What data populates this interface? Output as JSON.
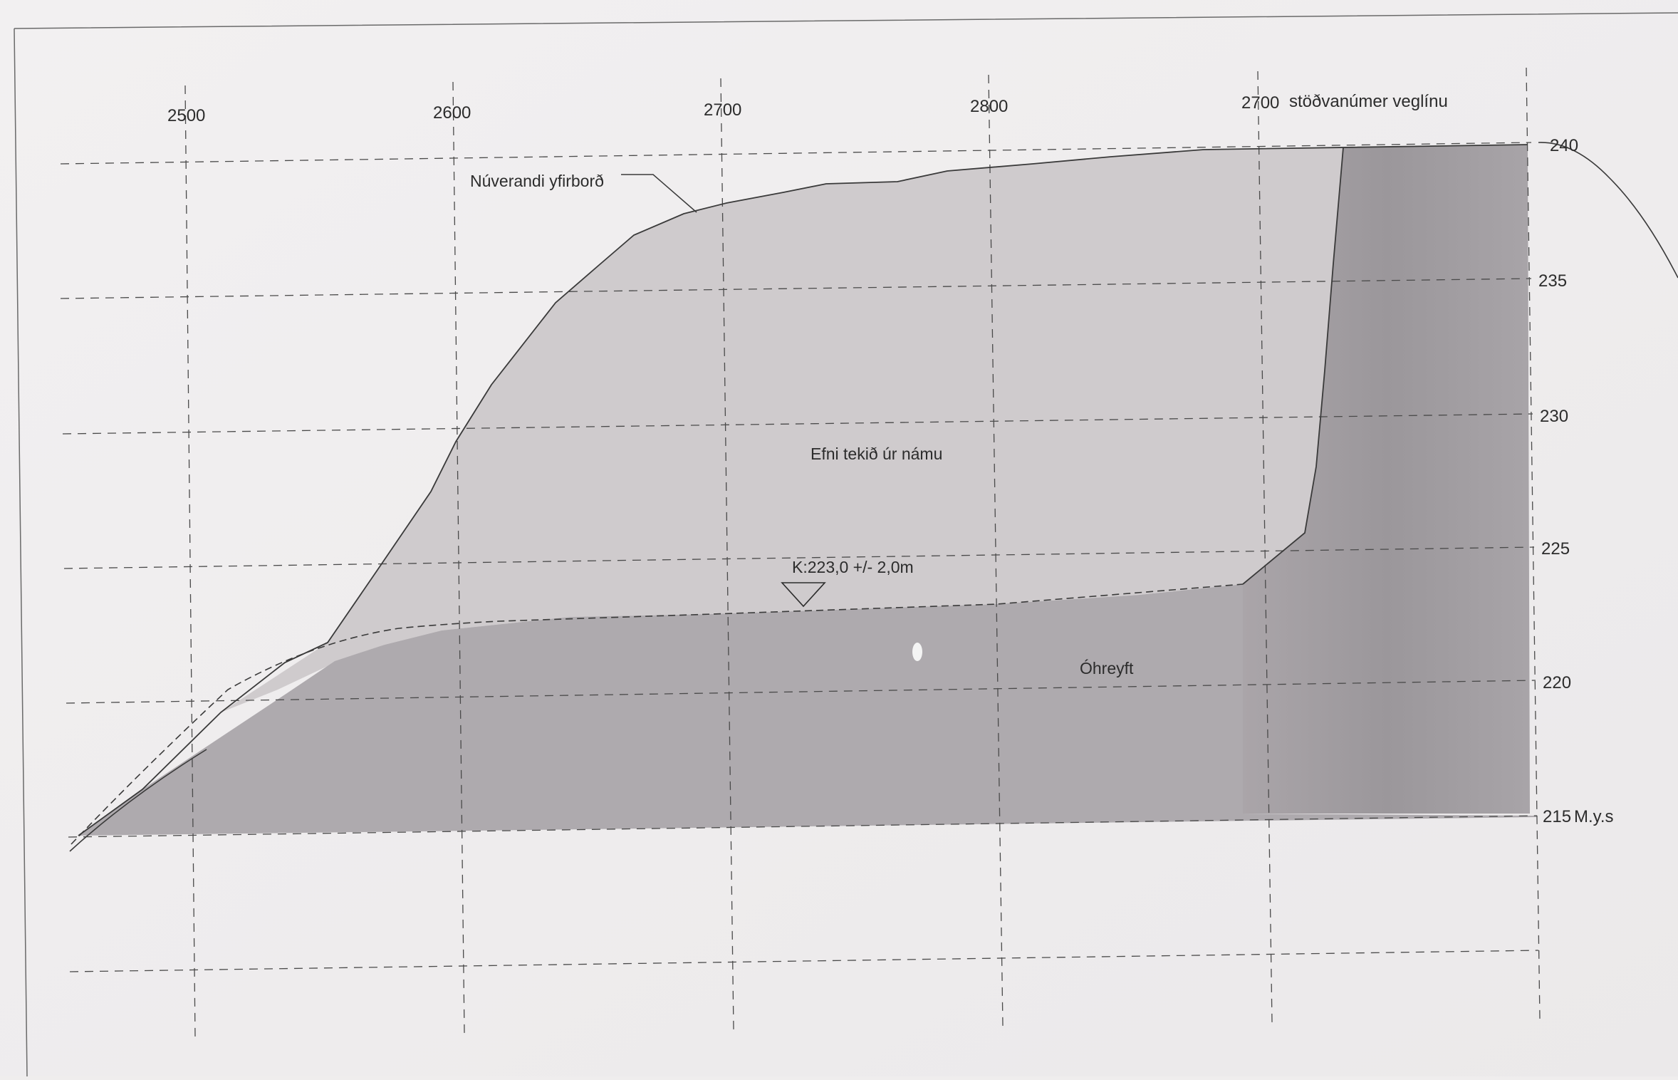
{
  "x_axis": {
    "tick_labels": [
      "2500",
      "2600",
      "2700",
      "2800",
      "2700"
    ],
    "end_label": "stöðvanúmer veglínu"
  },
  "y_axis": {
    "tick_labels": [
      "240",
      "235",
      "230",
      "225",
      "220",
      "215"
    ],
    "unit": "M.y.s"
  },
  "labels": {
    "existing_surface": "Núverandi yfirborð",
    "extracted_material": "Efni tekið úr námu",
    "level": "K:223,0 +/- 2,0m",
    "undisturbed": "Óhreyft"
  },
  "colors": {
    "paper": "#efeded",
    "excavation_fill": "#cdc9cb",
    "base_fill": "#aba7ab",
    "right_fill": "#9e9a9e",
    "line": "#3a3a3a",
    "grid": "#4a4a4a"
  }
}
